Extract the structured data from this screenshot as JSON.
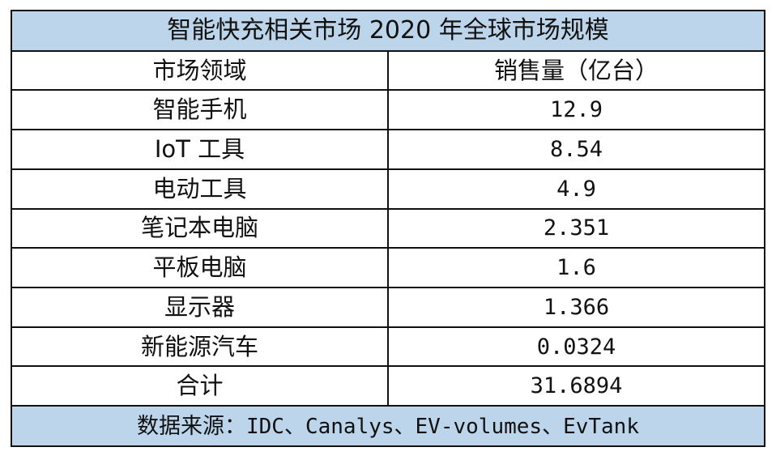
{
  "table": {
    "title": "智能快充相关市场 2020 年全球市场规模",
    "columns": [
      "市场领域",
      "销售量（亿台）"
    ],
    "rows": [
      {
        "market": "智能手机",
        "sales": "12.9"
      },
      {
        "market": "IoT 工具",
        "sales": "8.54"
      },
      {
        "market": "电动工具",
        "sales": "4.9"
      },
      {
        "market": "笔记本电脑",
        "sales": "2.351"
      },
      {
        "market": "平板电脑",
        "sales": "1.6"
      },
      {
        "market": "显示器",
        "sales": "1.366"
      },
      {
        "market": "新能源汽车",
        "sales": "0.0324"
      }
    ],
    "total": {
      "label": "合计",
      "value": "31.6894"
    },
    "source": {
      "prefix": "数据来源：",
      "text": "IDC、Canalys、EV-volumes、EvTank"
    }
  },
  "colors": {
    "band_background": "#bcd5ea",
    "border": "#111111",
    "cell_background": "#ffffff",
    "text": "#111111"
  }
}
